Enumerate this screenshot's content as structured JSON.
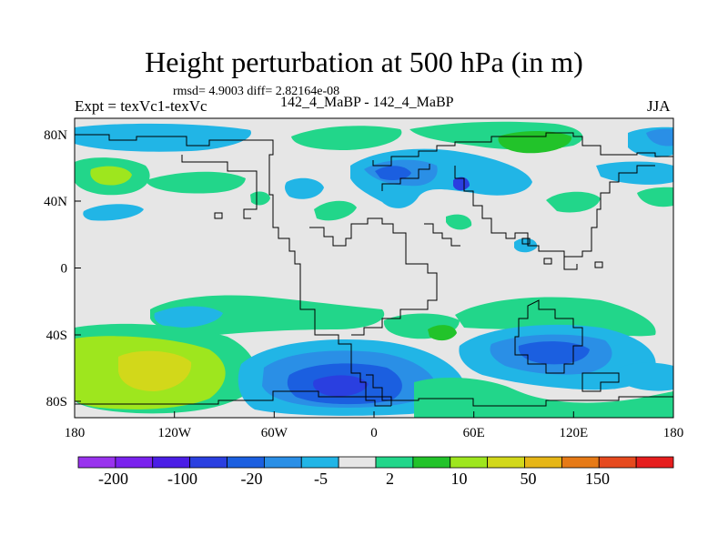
{
  "title": "Height perturbation at 500 hPa (in m)",
  "stats": "rmsd= 4.9003 diff= 2.82164e-08",
  "left_label": "Expt = texVc1-texVc",
  "center_label": "142_4_MaBP - 142_4_MaBP",
  "right_label": "JJA",
  "map_data": {
    "projection": "cylindrical-equidistant",
    "lon_range": [
      -180,
      180
    ],
    "lat_range": [
      -90,
      90
    ],
    "x_ticks": [
      "180",
      "120W",
      "60W",
      "0",
      "60E",
      "120E",
      "180"
    ],
    "y_ticks": [
      "80N",
      "40N",
      "0",
      "40S",
      "80S"
    ],
    "background_color": "#e6e6e6"
  },
  "colorbar": {
    "colors": [
      "#9933ee",
      "#7a22ee",
      "#4b1ee6",
      "#2a3fe0",
      "#1b5fe0",
      "#2a8fe6",
      "#21b5e6",
      "#e6e6e6",
      "#22d68a",
      "#22c32a",
      "#9ee61e",
      "#d2d81a",
      "#e6b616",
      "#e67a16",
      "#e64a1e",
      "#e61e1e"
    ],
    "tick_labels": [
      "-200",
      "-100",
      "-20",
      "-5",
      "2",
      "10",
      "50",
      "150"
    ]
  }
}
